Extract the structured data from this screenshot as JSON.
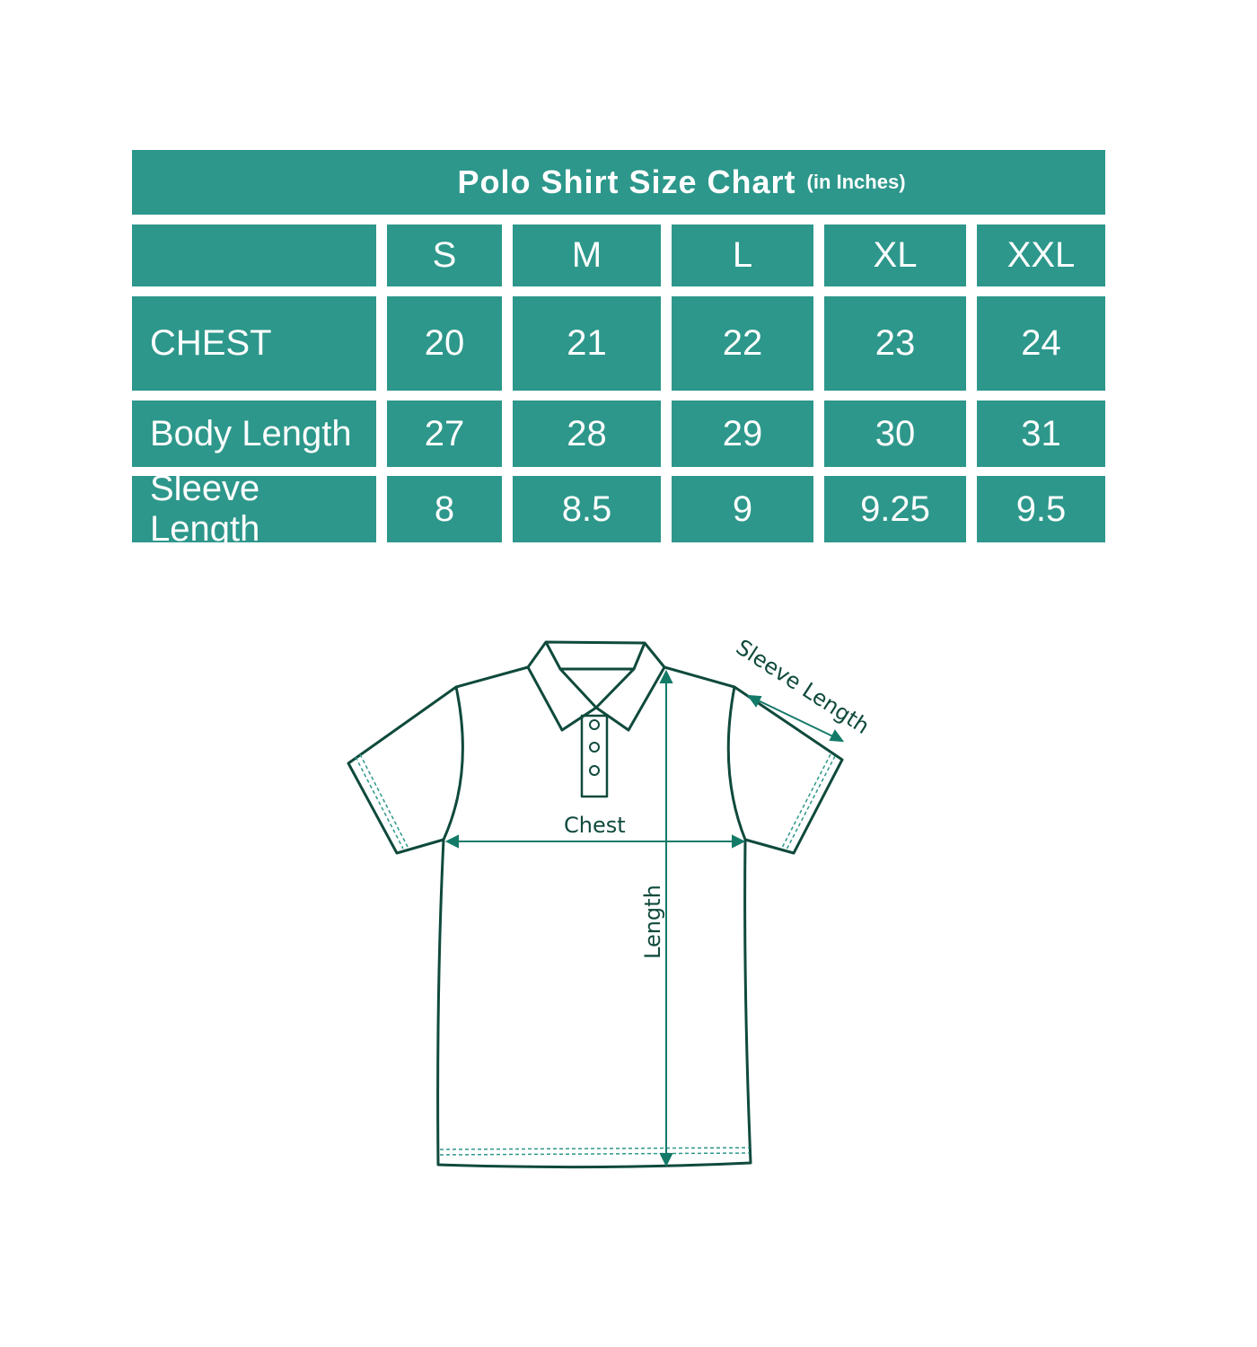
{
  "title": "Polo Shirt Size Chart",
  "subtitle": "(in Inches)",
  "accent_color": "#2d978b",
  "chart_data": {
    "type": "table",
    "columns": [
      "S",
      "M",
      "L",
      "XL",
      "XXL"
    ],
    "rows": [
      {
        "label": "CHEST",
        "values": [
          "20",
          "21",
          "22",
          "23",
          "24"
        ]
      },
      {
        "label": "Body Length",
        "values": [
          "27",
          "28",
          "29",
          "30",
          "31"
        ]
      },
      {
        "label": "Sleeve Length",
        "values": [
          "8",
          "8.5",
          "9",
          "9.25",
          "9.5"
        ]
      }
    ]
  },
  "diagram": {
    "chest_label": "Chest",
    "length_label": "Length",
    "sleeve_label": "Sleeve Length",
    "line_color": "#0f4a3c",
    "arrow_color": "#137a68"
  }
}
